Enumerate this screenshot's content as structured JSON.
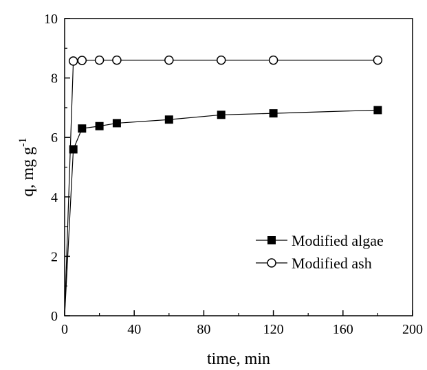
{
  "chart_data": {
    "type": "line",
    "title": "",
    "xlabel": "time, min",
    "ylabel": "q, mg g",
    "ylabel_superscript": "-1",
    "xlim": [
      0,
      200
    ],
    "ylim": [
      0,
      10
    ],
    "x_ticks": [
      "0",
      "40",
      "80",
      "120",
      "160",
      "200"
    ],
    "y_ticks": [
      "0",
      "2",
      "4",
      "6",
      "8",
      "10"
    ],
    "grid": false,
    "legend_position": "bottom-right",
    "series": [
      {
        "name": "Modified algae",
        "marker": "filled-square",
        "color": "#000000",
        "x": [
          0,
          5,
          10,
          20,
          30,
          60,
          90,
          120,
          180
        ],
        "y": [
          0,
          5.6,
          6.3,
          6.38,
          6.48,
          6.6,
          6.76,
          6.81,
          6.92
        ]
      },
      {
        "name": "Modified ash",
        "marker": "open-circle",
        "color": "#000000",
        "x": [
          0,
          5,
          10,
          20,
          30,
          60,
          90,
          120,
          180
        ],
        "y": [
          0,
          8.57,
          8.59,
          8.6,
          8.6,
          8.6,
          8.6,
          8.6,
          8.6
        ]
      }
    ]
  }
}
